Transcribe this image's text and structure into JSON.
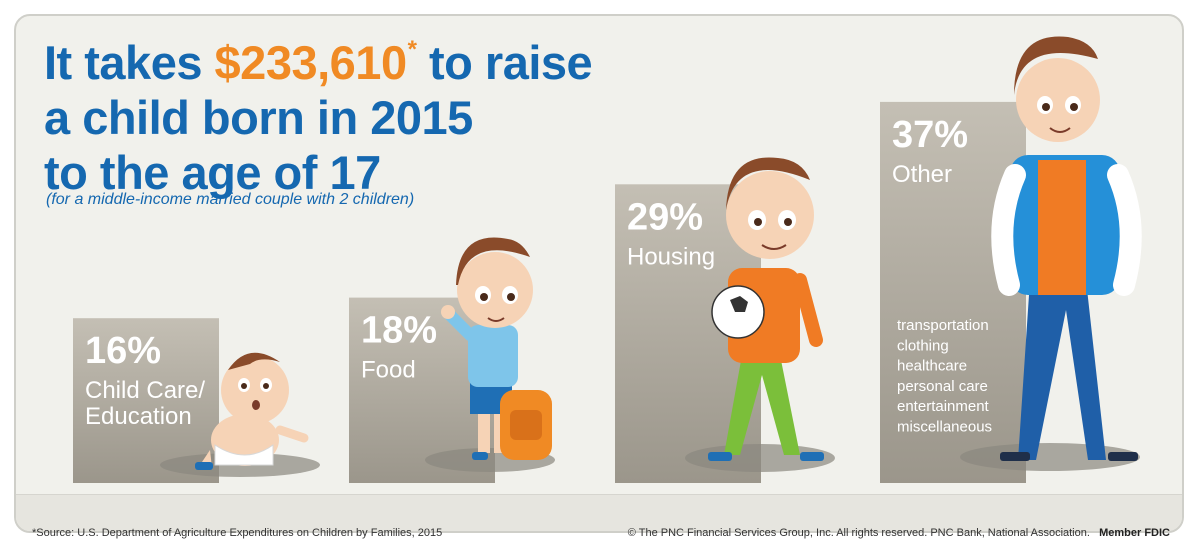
{
  "headline": {
    "line1_prefix": "It takes ",
    "amount": "$233,610",
    "asterisk": "*",
    "line1_suffix": " to raise",
    "line2": "a child born in 2015",
    "line3": "to the age of 17"
  },
  "subtitle": "(for a middle-income married couple with 2 children)",
  "chart_data": {
    "type": "bar",
    "categories": [
      "Child Care/ Education",
      "Food",
      "Housing",
      "Other"
    ],
    "values": [
      16,
      18,
      29,
      37
    ],
    "value_labels": [
      "16%",
      "18%",
      "29%",
      "37%"
    ],
    "category_lines": [
      [
        "Child Care/",
        "Education"
      ],
      [
        "Food"
      ],
      [
        "Housing"
      ],
      [
        "Other"
      ]
    ],
    "other_breakdown": [
      "transportation",
      "clothing",
      "healthcare",
      "personal care",
      "entertainment",
      "miscellaneous"
    ],
    "bar_color": "#bcb7ab"
  },
  "illustrations": [
    "baby-illustration",
    "toddler-illustration",
    "child-with-ball-illustration",
    "teen-illustration"
  ],
  "footer": {
    "source": "*Source: U.S. Department of Agriculture Expenditures on Children by Families, 2015",
    "copyright": "© The PNC Financial Services Group, Inc. All rights reserved. PNC Bank, National Association.",
    "member": "Member FDIC"
  },
  "colors": {
    "title_blue": "#1568b0",
    "accent_orange": "#f08a24",
    "background": "#f1f1ec"
  }
}
